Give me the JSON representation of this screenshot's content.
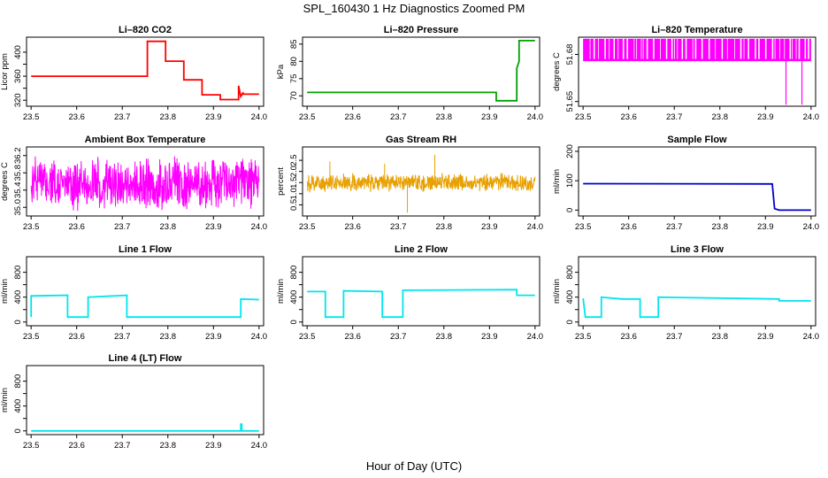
{
  "figure": {
    "title": "SPL_160430  1 Hz Diagnostics Zoomed PM",
    "xlabel": "Hour of Day (UTC)"
  },
  "chart_data": [
    {
      "id": "co2",
      "type": "line",
      "title": "Li–820 CO2",
      "ylabel": "Licor ppm",
      "xlim": [
        23.49,
        24.01
      ],
      "ylim": [
        310,
        425
      ],
      "yticks": [
        320,
        340,
        360,
        380,
        400
      ],
      "ytick_labels": [
        "320",
        "",
        "360",
        "",
        "400"
      ],
      "xticks": [
        "23.5",
        "23.6",
        "23.7",
        "23.8",
        "23.9",
        "24.0"
      ],
      "series": [
        {
          "color": "#ff0000",
          "x": [
            23.5,
            23.755,
            23.755,
            23.795,
            23.795,
            23.835,
            23.835,
            23.875,
            23.875,
            23.915,
            23.915,
            23.955,
            23.955,
            23.96,
            23.965,
            23.965,
            24.0
          ],
          "y": [
            360,
            360,
            418,
            418,
            385,
            385,
            354,
            354,
            329,
            329,
            321,
            321,
            344,
            326,
            333,
            330,
            330
          ]
        }
      ]
    },
    {
      "id": "pressure",
      "type": "line",
      "title": "Li–820 Pressure",
      "ylabel": "kPa",
      "xlim": [
        23.49,
        24.01
      ],
      "ylim": [
        67,
        87
      ],
      "yticks": [
        70,
        75,
        80,
        85
      ],
      "ytick_labels": [
        "70",
        "75",
        "80",
        "85"
      ],
      "xticks": [
        "23.5",
        "23.6",
        "23.7",
        "23.8",
        "23.9",
        "24.0"
      ],
      "series": [
        {
          "color": "#00a000",
          "x": [
            23.5,
            23.915,
            23.915,
            23.96,
            23.96,
            23.965,
            23.965,
            24.0
          ],
          "y": [
            71,
            71,
            68.6,
            68.6,
            78,
            80,
            86,
            86
          ]
        }
      ]
    },
    {
      "id": "temp820",
      "type": "line",
      "title": "Li–820 Temperature",
      "ylabel": "degrees C",
      "xlim": [
        23.49,
        24.01
      ],
      "ylim": [
        51.647,
        51.691
      ],
      "yticks": [
        51.65,
        51.68
      ],
      "ytick_labels": [
        "51.65",
        "51.68"
      ],
      "xticks": [
        "23.5",
        "23.6",
        "23.7",
        "23.8",
        "23.9",
        "24.0"
      ],
      "pattern": {
        "kind": "toggle",
        "low": 51.676,
        "high": 51.69,
        "spikes_x": [
          23.945,
          23.98
        ],
        "spikes_y": 51.648
      },
      "series": [
        {
          "color": "#ff00ff",
          "x": [
            23.5,
            24.0
          ],
          "y": [
            51.676,
            51.69
          ]
        }
      ]
    },
    {
      "id": "ambient",
      "type": "line",
      "title": "Ambient Box Temperature",
      "ylabel": "degrees C",
      "xlim": [
        23.49,
        24.01
      ],
      "ylim": [
        34.8,
        36.4
      ],
      "yticks": [
        35.0,
        35.4,
        35.8,
        36.2
      ],
      "ytick_labels": [
        "35.0",
        "35.4",
        "35.8",
        "36.2"
      ],
      "xticks": [
        "23.5",
        "23.6",
        "23.7",
        "23.8",
        "23.9",
        "24.0"
      ],
      "pattern": {
        "kind": "noise",
        "mid": 35.55,
        "amp": 0.65
      },
      "series": [
        {
          "color": "#ff00ff",
          "x": [
            23.5,
            24.0
          ],
          "y": [
            35.55,
            35.55
          ]
        }
      ]
    },
    {
      "id": "rh",
      "type": "line",
      "title": "Gas Stream RH",
      "ylabel": "percent",
      "xlim": [
        23.49,
        24.01
      ],
      "ylim": [
        0.0,
        3.1
      ],
      "yticks": [
        0.5,
        1.0,
        1.5,
        2.0,
        2.5
      ],
      "ytick_labels": [
        "0.5",
        "1.0",
        "1.5",
        "2.0",
        "2.5"
      ],
      "xticks": [
        "23.5",
        "23.6",
        "23.7",
        "23.8",
        "23.9",
        "24.0"
      ],
      "pattern": {
        "kind": "noise",
        "mid": 1.5,
        "amp": 0.45,
        "spikes": [
          [
            23.72,
            0.15
          ],
          [
            23.78,
            2.75
          ],
          [
            23.67,
            2.35
          ],
          [
            23.55,
            2.45
          ]
        ]
      },
      "series": [
        {
          "color": "#e8a000",
          "x": [
            23.5,
            24.0
          ],
          "y": [
            1.5,
            1.5
          ]
        }
      ]
    },
    {
      "id": "sample",
      "type": "line",
      "title": "Sample Flow",
      "ylabel": "ml/min",
      "xlim": [
        23.49,
        24.01
      ],
      "ylim": [
        -20,
        215
      ],
      "yticks": [
        0,
        100,
        200
      ],
      "ytick_labels": [
        "0",
        "100",
        "200"
      ],
      "xticks": [
        "23.5",
        "23.6",
        "23.7",
        "23.8",
        "23.9",
        "24.0"
      ],
      "series": [
        {
          "color": "#0000cc",
          "x": [
            23.5,
            23.915,
            23.92,
            23.93,
            24.0
          ],
          "y": [
            90,
            89,
            5,
            0,
            0
          ]
        }
      ]
    },
    {
      "id": "line1",
      "type": "line",
      "title": "Line 1 Flow",
      "ylabel": "ml/min",
      "xlim": [
        23.49,
        24.01
      ],
      "ylim": [
        -60,
        1050
      ],
      "yticks": [
        0,
        200,
        400,
        600,
        800
      ],
      "ytick_labels": [
        "0",
        "",
        "400",
        "",
        "800"
      ],
      "xticks": [
        "23.5",
        "23.6",
        "23.7",
        "23.8",
        "23.9",
        "24.0"
      ],
      "series": [
        {
          "color": "#00e5ee",
          "x": [
            23.5,
            23.5,
            23.58,
            23.58,
            23.625,
            23.625,
            23.71,
            23.71,
            23.96,
            23.96,
            24.0
          ],
          "y": [
            80,
            420,
            430,
            80,
            80,
            400,
            430,
            80,
            80,
            370,
            360
          ]
        }
      ]
    },
    {
      "id": "line2",
      "type": "line",
      "title": "Line 2 Flow",
      "ylabel": "ml/min",
      "xlim": [
        23.49,
        24.01
      ],
      "ylim": [
        -60,
        1050
      ],
      "yticks": [
        0,
        200,
        400,
        600,
        800
      ],
      "ytick_labels": [
        "0",
        "",
        "400",
        "",
        "800"
      ],
      "xticks": [
        "23.5",
        "23.6",
        "23.7",
        "23.8",
        "23.9",
        "24.0"
      ],
      "series": [
        {
          "color": "#00e5ee",
          "x": [
            23.5,
            23.54,
            23.54,
            23.58,
            23.58,
            23.665,
            23.665,
            23.71,
            23.71,
            23.96,
            23.96,
            24.0
          ],
          "y": [
            490,
            490,
            80,
            80,
            500,
            490,
            80,
            80,
            510,
            520,
            430,
            430
          ]
        }
      ]
    },
    {
      "id": "line3",
      "type": "line",
      "title": "Line 3 Flow",
      "ylabel": "ml/min",
      "xlim": [
        23.49,
        24.01
      ],
      "ylim": [
        -60,
        1050
      ],
      "yticks": [
        0,
        200,
        400,
        600,
        800
      ],
      "ytick_labels": [
        "0",
        "",
        "400",
        "",
        "800"
      ],
      "xticks": [
        "23.5",
        "23.6",
        "23.7",
        "23.8",
        "23.9",
        "24.0"
      ],
      "series": [
        {
          "color": "#00e5ee",
          "x": [
            23.5,
            23.5,
            23.505,
            23.505,
            23.54,
            23.54,
            23.585,
            23.625,
            23.625,
            23.665,
            23.665,
            23.93,
            23.93,
            24.0
          ],
          "y": [
            380,
            380,
            80,
            80,
            80,
            400,
            370,
            370,
            80,
            80,
            400,
            370,
            340,
            340
          ]
        }
      ]
    },
    {
      "id": "line4",
      "type": "line",
      "title": "Line 4 (LT) Flow",
      "ylabel": "ml/min",
      "xlim": [
        23.49,
        24.01
      ],
      "ylim": [
        -60,
        1050
      ],
      "yticks": [
        0,
        200,
        400,
        600,
        800
      ],
      "ytick_labels": [
        "0",
        "",
        "400",
        "",
        "800"
      ],
      "xticks": [
        "23.5",
        "23.6",
        "23.7",
        "23.8",
        "23.9",
        "24.0"
      ],
      "series": [
        {
          "color": "#00e5ee",
          "x": [
            23.5,
            23.96,
            23.96,
            23.962,
            23.962,
            24.0
          ],
          "y": [
            0,
            0,
            110,
            110,
            0,
            0
          ]
        }
      ]
    }
  ]
}
